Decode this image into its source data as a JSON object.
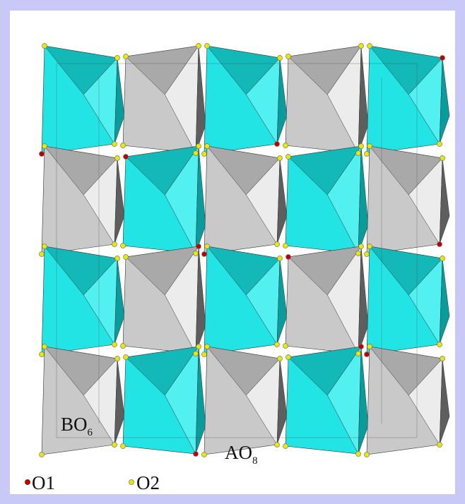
{
  "labels": [
    {
      "text": "BO",
      "subscript": "6"
    },
    {
      "text": "AO",
      "subscript": "8"
    }
  ],
  "legend": [
    {
      "text": "O1"
    },
    {
      "text": "O2"
    }
  ]
}
